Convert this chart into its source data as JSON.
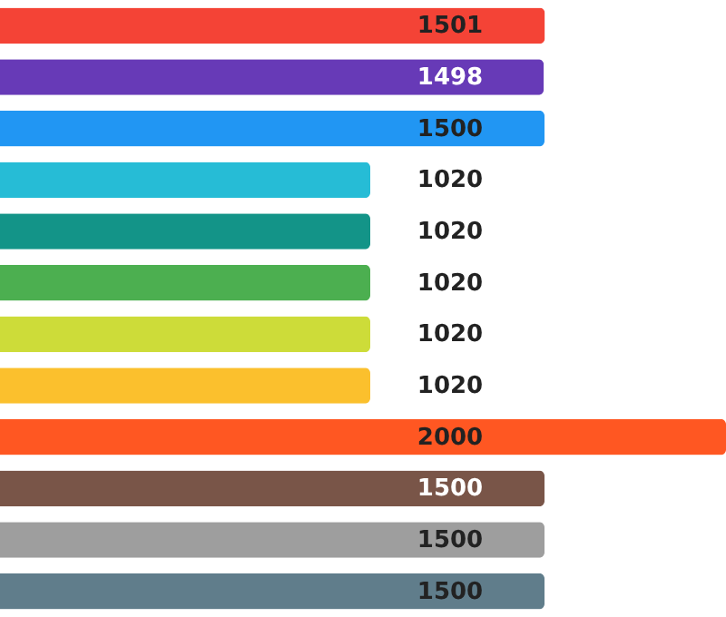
{
  "chart_data": {
    "type": "bar",
    "orientation": "horizontal",
    "data_labels": true,
    "categories": [
      null,
      null,
      null,
      null,
      null,
      null,
      null,
      null,
      null,
      null,
      null,
      null
    ],
    "values": [
      1501,
      1498,
      1500,
      1020,
      1020,
      1020,
      1020,
      1020,
      2000,
      1500,
      1500,
      1500
    ],
    "colors": [
      "#f44336",
      "#673ab7",
      "#2196f3",
      "#26bcd6",
      "#139488",
      "#4caf50",
      "#cddc39",
      "#fbc02d",
      "#ff5722",
      "#795548",
      "#9e9e9e",
      "#607d8b"
    ],
    "tick_labels": false,
    "grid": false
  }
}
